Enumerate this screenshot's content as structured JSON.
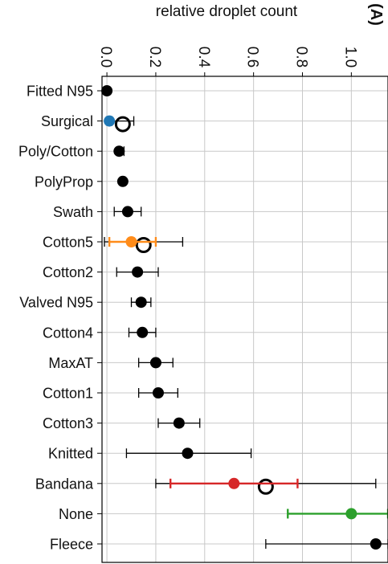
{
  "chart_data": {
    "type": "scatter",
    "panel_label": "(A)",
    "title": "",
    "xlabel": "relative droplet count",
    "ylabel": "",
    "xlim": [
      -0.02,
      1.15
    ],
    "x_ticks": [
      "0.0",
      "0.2",
      "0.4",
      "0.6",
      "0.8",
      "1.0"
    ],
    "x_tick_values": [
      0.0,
      0.2,
      0.4,
      0.6,
      0.8,
      1.0
    ],
    "grid": true,
    "categories": [
      "Fitted N95",
      "Surgical",
      "Poly/Cotton",
      "PolyProp",
      "Swath",
      "Cotton5",
      "Cotton2",
      "Valved N95",
      "Cotton4",
      "MaxAT",
      "Cotton1",
      "Cotton3",
      "Knitted",
      "Bandana",
      "None",
      "Fleece"
    ],
    "series": [
      {
        "marker": "filled-circle",
        "color": "#000000",
        "points": [
          {
            "category": "Fitted N95",
            "value": 0.0,
            "err_low": 0.0,
            "err_high": 0.0
          },
          {
            "category": "Poly/Cotton",
            "value": 0.05,
            "err_low": 0.04,
            "err_high": 0.07
          },
          {
            "category": "PolyProp",
            "value": 0.065,
            "err_low": 0.055,
            "err_high": 0.075
          },
          {
            "category": "Swath",
            "value": 0.085,
            "err_low": 0.03,
            "err_high": 0.14
          },
          {
            "category": "Cotton2",
            "value": 0.125,
            "err_low": 0.04,
            "err_high": 0.21
          },
          {
            "category": "Valved N95",
            "value": 0.14,
            "err_low": 0.1,
            "err_high": 0.18
          },
          {
            "category": "Cotton4",
            "value": 0.145,
            "err_low": 0.09,
            "err_high": 0.2
          },
          {
            "category": "MaxAT",
            "value": 0.2,
            "err_low": 0.13,
            "err_high": 0.27
          },
          {
            "category": "Cotton1",
            "value": 0.21,
            "err_low": 0.13,
            "err_high": 0.29
          },
          {
            "category": "Cotton3",
            "value": 0.295,
            "err_low": 0.21,
            "err_high": 0.38
          },
          {
            "category": "Knitted",
            "value": 0.33,
            "err_low": 0.08,
            "err_high": 0.59
          },
          {
            "category": "Fleece",
            "value": 1.1,
            "err_low": 0.65,
            "err_high": 1.15
          }
        ]
      },
      {
        "marker": "open-circle",
        "color": "#000000",
        "points": [
          {
            "category": "Surgical",
            "value": 0.065,
            "err_low": 0.02,
            "err_high": 0.11
          },
          {
            "category": "Cotton5",
            "value": 0.15,
            "err_low": -0.01,
            "err_high": 0.31
          },
          {
            "category": "Bandana",
            "value": 0.65,
            "err_low": 0.2,
            "err_high": 1.1
          }
        ]
      },
      {
        "marker": "filled-circle",
        "color": "#1f77b4",
        "points": [
          {
            "category": "Surgical",
            "value": 0.01,
            "err_low": 0.0,
            "err_high": 0.02
          }
        ]
      },
      {
        "marker": "filled-circle",
        "color": "#ff8c1a",
        "points": [
          {
            "category": "Cotton5",
            "value": 0.1,
            "err_low": 0.01,
            "err_high": 0.2
          }
        ]
      },
      {
        "marker": "filled-circle",
        "color": "#d62728",
        "points": [
          {
            "category": "Bandana",
            "value": 0.52,
            "err_low": 0.26,
            "err_high": 0.78
          }
        ]
      },
      {
        "marker": "filled-circle",
        "color": "#2ca02c",
        "points": [
          {
            "category": "None",
            "value": 1.0,
            "err_low": 0.74,
            "err_high": 1.15
          }
        ]
      }
    ]
  }
}
